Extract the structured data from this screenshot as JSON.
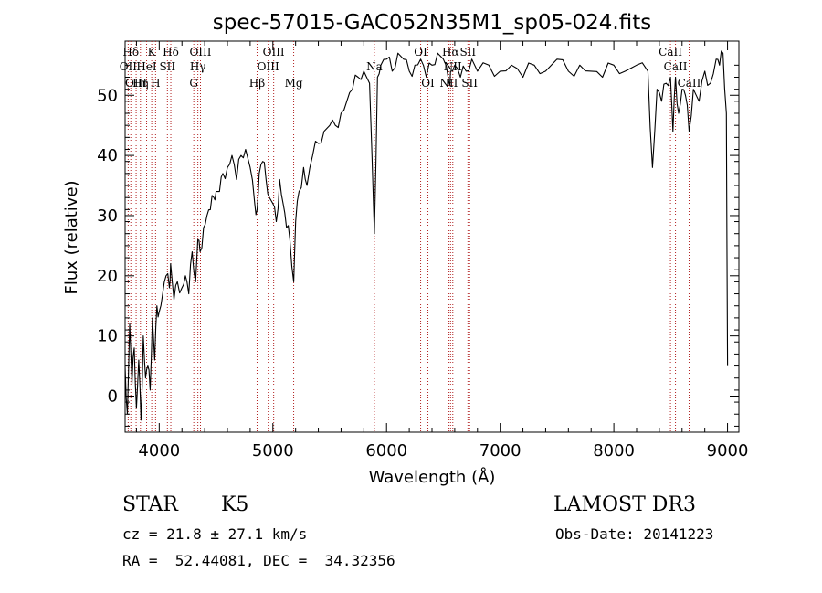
{
  "chart_data": {
    "type": "line",
    "title": "spec-57015-GAC052N35M1_sp05-024.fits",
    "xlabel": "Wavelength (Å)",
    "ylabel": "Flux (relative)",
    "xlim": [
      3700,
      9100
    ],
    "ylim": [
      -6,
      59
    ],
    "xticks": [
      4000,
      5000,
      6000,
      7000,
      8000,
      9000
    ],
    "yticks": [
      0,
      10,
      20,
      30,
      40,
      50
    ],
    "series": [
      {
        "name": "flux",
        "x": [
          3700,
          3720,
          3740,
          3760,
          3780,
          3800,
          3820,
          3840,
          3860,
          3880,
          3900,
          3920,
          3940,
          3960,
          3980,
          4000,
          4030,
          4060,
          4090,
          4100,
          4130,
          4160,
          4200,
          4230,
          4260,
          4290,
          4320,
          4340,
          4360,
          4390,
          4420,
          4450,
          4480,
          4500,
          4530,
          4560,
          4600,
          4640,
          4680,
          4720,
          4760,
          4800,
          4840,
          4861,
          4880,
          4910,
          4940,
          4970,
          5000,
          5030,
          5060,
          5090,
          5120,
          5150,
          5183,
          5200,
          5230,
          5270,
          5300,
          5350,
          5400,
          5450,
          5500,
          5550,
          5600,
          5650,
          5700,
          5750,
          5800,
          5850,
          5893,
          5920,
          5950,
          6000,
          6050,
          6100,
          6150,
          6200,
          6250,
          6300,
          6350,
          6400,
          6450,
          6500,
          6550,
          6563,
          6600,
          6650,
          6700,
          6750,
          6800,
          6900,
          7000,
          7100,
          7200,
          7300,
          7400,
          7500,
          7600,
          7700,
          7800,
          7900,
          8000,
          8100,
          8200,
          8300,
          8340,
          8380,
          8420,
          8460,
          8498,
          8520,
          8542,
          8570,
          8600,
          8630,
          8662,
          8700,
          8750,
          8800,
          8850,
          8900,
          8930,
          8960,
          8990,
          9000
        ],
        "values": [
          5,
          -3,
          12,
          2,
          8,
          -2,
          6,
          -4,
          10,
          3,
          5,
          1,
          13,
          6,
          15,
          14,
          17,
          20,
          18,
          22,
          16,
          19,
          18,
          20,
          17,
          24,
          19,
          26,
          24,
          28,
          30,
          31,
          33,
          34,
          34,
          37,
          38,
          40,
          36,
          40,
          41,
          38,
          32,
          31,
          37,
          39,
          36,
          33,
          32,
          29,
          36,
          32,
          28,
          26,
          19,
          29,
          34,
          38,
          35,
          40,
          42,
          44,
          45,
          45,
          47,
          49,
          51,
          53,
          54,
          52,
          27,
          53,
          55,
          56,
          54,
          57,
          56,
          54,
          55,
          56,
          53,
          55,
          57,
          56,
          52,
          54,
          55,
          53,
          54,
          56,
          54,
          55,
          54,
          55,
          53,
          55,
          54,
          56,
          54,
          55,
          54,
          53,
          55,
          54,
          55,
          54,
          38,
          51,
          49,
          52,
          53,
          44,
          53,
          47,
          51,
          50,
          44,
          51,
          49,
          54,
          52,
          56,
          55,
          57,
          47,
          5
        ]
      }
    ],
    "reference_lines": {
      "top_row": [
        {
          "label": "Hδ",
          "x": 3750
        },
        {
          "label": "K",
          "x": 3934
        },
        {
          "label": "Hδ",
          "x": 4102
        },
        {
          "label": "OIII",
          "x": 4363
        },
        {
          "label": "OIII",
          "x": 5007
        },
        {
          "label": "OI",
          "x": 6300
        },
        {
          "label": "Hα",
          "x": 6563
        },
        {
          "label": "SII",
          "x": 6716
        },
        {
          "label": "CaII",
          "x": 8498
        }
      ],
      "middle_row": [
        {
          "label": "OII",
          "x": 3727
        },
        {
          "label": "HeI",
          "x": 3889
        },
        {
          "label": "SII",
          "x": 4072
        },
        {
          "label": "Hγ",
          "x": 4340
        },
        {
          "label": "OIII",
          "x": 4959
        },
        {
          "label": "Na",
          "x": 5893
        },
        {
          "label": "NII",
          "x": 6583
        },
        {
          "label": "CaII",
          "x": 8542
        }
      ],
      "bottom_row": [
        {
          "label": "OIII",
          "x": 3797
        },
        {
          "label": "Hη",
          "x": 3835
        },
        {
          "label": "H",
          "x": 3968
        },
        {
          "label": "G",
          "x": 4304
        },
        {
          "label": "Hβ",
          "x": 4861
        },
        {
          "label": "Mg",
          "x": 5183
        },
        {
          "label": "OI",
          "x": 6364
        },
        {
          "label": "NII",
          "x": 6548
        },
        {
          "label": "SII",
          "x": 6731
        },
        {
          "label": "CaII",
          "x": 8662
        }
      ]
    }
  },
  "info": {
    "object_class": "STAR",
    "subclass": "K5",
    "survey": "LAMOST DR3",
    "cz": "cz = 21.8 ± 27.1 km/s",
    "obs_date": "Obs-Date: 20141223",
    "coords": "RA =  52.44081, DEC =  34.32356"
  },
  "colors": {
    "line": "#000000",
    "reference": "#b22222",
    "axis": "#000000"
  }
}
